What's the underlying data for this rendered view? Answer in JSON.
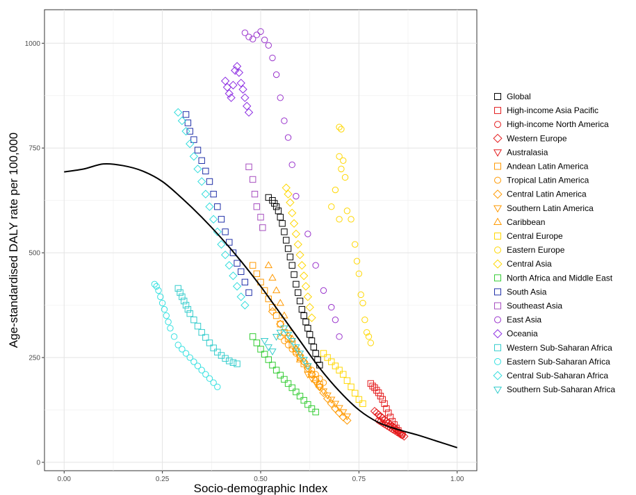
{
  "chart_data": {
    "type": "scatter",
    "title": "",
    "xlabel": "Socio-demographic Index",
    "ylabel": "Age-standardised DALY rate per 100,000",
    "xlim": [
      -0.05,
      1.05
    ],
    "ylim": [
      -20,
      1080
    ],
    "x_ticks": [
      0.0,
      0.25,
      0.5,
      0.75,
      1.0
    ],
    "x_tick_labels": [
      "0.00",
      "0.25",
      "0.50",
      "0.75",
      "1.00"
    ],
    "y_ticks": [
      0,
      250,
      500,
      750,
      1000
    ],
    "y_tick_labels": [
      "0",
      "250",
      "500",
      "750",
      "1000"
    ],
    "grid": true,
    "legend_position": "right",
    "series": [
      {
        "name": "Global",
        "color": "#000000",
        "marker": "square",
        "x": [
          0.52,
          0.53,
          0.535,
          0.54,
          0.545,
          0.55,
          0.555,
          0.56,
          0.565,
          0.57,
          0.575,
          0.58,
          0.585,
          0.59,
          0.595,
          0.6,
          0.605,
          0.61,
          0.615,
          0.62,
          0.625,
          0.63,
          0.635,
          0.64,
          0.645,
          0.65
        ],
        "y": [
          632,
          625,
          618,
          610,
          600,
          585,
          570,
          550,
          530,
          510,
          490,
          470,
          448,
          425,
          405,
          385,
          365,
          350,
          335,
          320,
          305,
          290,
          275,
          260,
          245,
          232
        ]
      },
      {
        "name": "High-income Asia Pacific",
        "color": "#e41a1c",
        "marker": "square",
        "x": [
          0.78,
          0.785,
          0.79,
          0.795,
          0.8,
          0.805,
          0.81,
          0.815,
          0.82,
          0.825,
          0.83,
          0.835,
          0.84,
          0.845,
          0.85
        ],
        "y": [
          188,
          182,
          178,
          172,
          166,
          158,
          150,
          140,
          128,
          118,
          108,
          98,
          90,
          82,
          76
        ]
      },
      {
        "name": "High-income North America",
        "color": "#e41a1c",
        "marker": "circle",
        "x": [
          0.8,
          0.805,
          0.81,
          0.815,
          0.82,
          0.825,
          0.83,
          0.835,
          0.84,
          0.845,
          0.85,
          0.855,
          0.86
        ],
        "y": [
          100,
          97,
          94,
          91,
          88,
          85,
          82,
          79,
          76,
          73,
          70,
          67,
          64
        ]
      },
      {
        "name": "Western Europe",
        "color": "#e41a1c",
        "marker": "diamond",
        "x": [
          0.79,
          0.795,
          0.8,
          0.805,
          0.81,
          0.815,
          0.82,
          0.825,
          0.83,
          0.835,
          0.84,
          0.845,
          0.85,
          0.855,
          0.86,
          0.865
        ],
        "y": [
          122,
          118,
          114,
          110,
          106,
          102,
          98,
          94,
          90,
          86,
          82,
          78,
          74,
          70,
          66,
          62
        ]
      },
      {
        "name": "Australasia",
        "color": "#e41a1c",
        "marker": "triangle-down",
        "x": [
          0.8,
          0.81,
          0.82,
          0.83,
          0.84,
          0.85,
          0.86
        ],
        "y": [
          110,
          102,
          95,
          88,
          80,
          72,
          65
        ]
      },
      {
        "name": "Andean Latin America",
        "color": "#ff9900",
        "marker": "square",
        "x": [
          0.48,
          0.49,
          0.5,
          0.51,
          0.52,
          0.53,
          0.54,
          0.55,
          0.56,
          0.57,
          0.58,
          0.59,
          0.6,
          0.61,
          0.62,
          0.63,
          0.64,
          0.65
        ],
        "y": [
          470,
          450,
          430,
          410,
          390,
          370,
          350,
          330,
          310,
          295,
          280,
          265,
          250,
          235,
          222,
          210,
          198,
          186
        ]
      },
      {
        "name": "Tropical Latin America",
        "color": "#ff9900",
        "marker": "circle",
        "x": [
          0.55,
          0.56,
          0.57,
          0.58,
          0.59,
          0.6,
          0.61,
          0.62,
          0.63,
          0.64,
          0.65,
          0.66
        ],
        "y": [
          300,
          290,
          280,
          270,
          260,
          250,
          240,
          230,
          220,
          210,
          200,
          190
        ]
      },
      {
        "name": "Central Latin America",
        "color": "#ff9900",
        "marker": "diamond",
        "x": [
          0.53,
          0.55,
          0.57,
          0.59,
          0.6,
          0.61,
          0.62,
          0.63,
          0.64,
          0.65,
          0.66,
          0.67,
          0.68,
          0.69,
          0.7,
          0.71,
          0.72
        ],
        "y": [
          360,
          330,
          300,
          270,
          255,
          240,
          225,
          210,
          195,
          180,
          166,
          152,
          140,
          128,
          118,
          108,
          100
        ]
      },
      {
        "name": "Southern Latin America",
        "color": "#ff9900",
        "marker": "triangle-down",
        "x": [
          0.62,
          0.63,
          0.64,
          0.65,
          0.66,
          0.67,
          0.68,
          0.69,
          0.7,
          0.71,
          0.72
        ],
        "y": [
          210,
          200,
          190,
          180,
          170,
          160,
          150,
          140,
          130,
          120,
          110
        ]
      },
      {
        "name": "Caribbean",
        "color": "#ff9900",
        "marker": "triangle",
        "x": [
          0.52,
          0.53,
          0.54,
          0.55,
          0.56,
          0.57,
          0.58,
          0.59,
          0.6
        ],
        "y": [
          470,
          440,
          410,
          380,
          350,
          320,
          295,
          270,
          245
        ]
      },
      {
        "name": "Central Europe",
        "color": "#ffd700",
        "marker": "square",
        "x": [
          0.66,
          0.67,
          0.68,
          0.69,
          0.7,
          0.71,
          0.72,
          0.73,
          0.74,
          0.75,
          0.76
        ],
        "y": [
          260,
          250,
          240,
          230,
          220,
          210,
          195,
          180,
          165,
          150,
          140
        ]
      },
      {
        "name": "Eastern Europe",
        "color": "#ffd700",
        "marker": "circle",
        "x": [
          0.7,
          0.705,
          0.7,
          0.71,
          0.705,
          0.715,
          0.69,
          0.68,
          0.7,
          0.72,
          0.73,
          0.74,
          0.745,
          0.75,
          0.755,
          0.76,
          0.765,
          0.77,
          0.775,
          0.78
        ],
        "y": [
          800,
          795,
          730,
          720,
          700,
          680,
          650,
          610,
          580,
          600,
          580,
          520,
          480,
          450,
          400,
          380,
          340,
          310,
          300,
          285
        ]
      },
      {
        "name": "Central Asia",
        "color": "#ffd700",
        "marker": "diamond",
        "x": [
          0.565,
          0.57,
          0.575,
          0.58,
          0.585,
          0.59,
          0.595,
          0.6,
          0.605,
          0.61,
          0.615,
          0.62,
          0.625,
          0.63
        ],
        "y": [
          655,
          640,
          620,
          595,
          570,
          545,
          520,
          495,
          470,
          445,
          420,
          395,
          370,
          345
        ]
      },
      {
        "name": "North Africa and Middle East",
        "color": "#33cc33",
        "marker": "square",
        "x": [
          0.48,
          0.49,
          0.5,
          0.51,
          0.52,
          0.53,
          0.54,
          0.55,
          0.56,
          0.57,
          0.58,
          0.59,
          0.6,
          0.61,
          0.62,
          0.63,
          0.64
        ],
        "y": [
          300,
          285,
          270,
          258,
          245,
          232,
          220,
          208,
          198,
          188,
          178,
          168,
          158,
          148,
          138,
          128,
          120
        ]
      },
      {
        "name": "South Asia",
        "color": "#1f2fa8",
        "marker": "square",
        "x": [
          0.31,
          0.315,
          0.32,
          0.33,
          0.34,
          0.35,
          0.36,
          0.37,
          0.38,
          0.39,
          0.4,
          0.41,
          0.42,
          0.43,
          0.44,
          0.45,
          0.46,
          0.47
        ],
        "y": [
          830,
          810,
          790,
          770,
          745,
          720,
          695,
          670,
          640,
          610,
          580,
          550,
          525,
          500,
          475,
          455,
          430,
          405
        ]
      },
      {
        "name": "Southeast Asia",
        "color": "#a64dbf",
        "marker": "square",
        "x": [
          0.47,
          0.48,
          0.485,
          0.49,
          0.5,
          0.505
        ],
        "y": [
          705,
          675,
          640,
          610,
          585,
          560
        ]
      },
      {
        "name": "East Asia",
        "color": "#9933cc",
        "marker": "circle",
        "x": [
          0.46,
          0.47,
          0.48,
          0.49,
          0.5,
          0.51,
          0.52,
          0.53,
          0.54,
          0.55,
          0.56,
          0.57,
          0.58,
          0.59,
          0.62,
          0.64,
          0.66,
          0.68,
          0.69,
          0.7
        ],
        "y": [
          1025,
          1015,
          1010,
          1020,
          1028,
          1008,
          995,
          965,
          925,
          870,
          815,
          775,
          710,
          635,
          545,
          470,
          410,
          370,
          340,
          300
        ]
      },
      {
        "name": "Oceania",
        "color": "#8b2be2",
        "marker": "diamond",
        "x": [
          0.41,
          0.415,
          0.42,
          0.425,
          0.43,
          0.435,
          0.44,
          0.445,
          0.45,
          0.455,
          0.46,
          0.465,
          0.47
        ],
        "y": [
          910,
          895,
          880,
          870,
          900,
          935,
          945,
          930,
          905,
          890,
          870,
          850,
          835
        ]
      },
      {
        "name": "Western Sub-Saharan Africa",
        "color": "#33cccc",
        "marker": "square",
        "x": [
          0.29,
          0.295,
          0.3,
          0.305,
          0.31,
          0.315,
          0.32,
          0.33,
          0.34,
          0.35,
          0.36,
          0.37,
          0.38,
          0.39,
          0.4,
          0.41,
          0.42,
          0.43,
          0.44
        ],
        "y": [
          415,
          405,
          395,
          385,
          375,
          365,
          355,
          340,
          325,
          310,
          298,
          285,
          273,
          263,
          255,
          248,
          242,
          238,
          235
        ]
      },
      {
        "name": "Eastern Sub-Saharan Africa",
        "color": "#33e0e0",
        "marker": "circle",
        "x": [
          0.23,
          0.235,
          0.24,
          0.245,
          0.25,
          0.255,
          0.26,
          0.265,
          0.27,
          0.28,
          0.29,
          0.3,
          0.31,
          0.32,
          0.33,
          0.34,
          0.35,
          0.36,
          0.37,
          0.38,
          0.39
        ],
        "y": [
          425,
          420,
          410,
          395,
          380,
          365,
          350,
          335,
          320,
          300,
          280,
          270,
          260,
          250,
          240,
          230,
          220,
          210,
          200,
          190,
          180
        ]
      },
      {
        "name": "Central Sub-Saharan Africa",
        "color": "#33dddd",
        "marker": "diamond",
        "x": [
          0.29,
          0.3,
          0.31,
          0.32,
          0.33,
          0.34,
          0.35,
          0.36,
          0.37,
          0.38,
          0.39,
          0.4,
          0.41,
          0.42,
          0.43,
          0.44,
          0.45,
          0.46
        ],
        "y": [
          835,
          815,
          790,
          760,
          730,
          700,
          670,
          640,
          610,
          580,
          550,
          520,
          495,
          470,
          445,
          420,
          395,
          375
        ]
      },
      {
        "name": "Southern Sub-Saharan Africa",
        "color": "#33cccc",
        "marker": "triangle-down",
        "x": [
          0.51,
          0.52,
          0.53,
          0.54,
          0.55,
          0.56,
          0.57,
          0.58,
          0.59,
          0.6,
          0.61,
          0.62
        ],
        "y": [
          290,
          275,
          265,
          300,
          310,
          320,
          305,
          290,
          275,
          260,
          245,
          230
        ]
      }
    ],
    "expected_curve": {
      "x": [
        0.0,
        0.05,
        0.1,
        0.15,
        0.2,
        0.25,
        0.3,
        0.35,
        0.4,
        0.45,
        0.5,
        0.55,
        0.6,
        0.65,
        0.7,
        0.75,
        0.8,
        0.85,
        0.9,
        0.95,
        1.0
      ],
      "y": [
        693,
        700,
        712,
        708,
        695,
        670,
        630,
        585,
        535,
        480,
        420,
        355,
        290,
        225,
        170,
        125,
        95,
        78,
        65,
        50,
        35
      ]
    }
  }
}
